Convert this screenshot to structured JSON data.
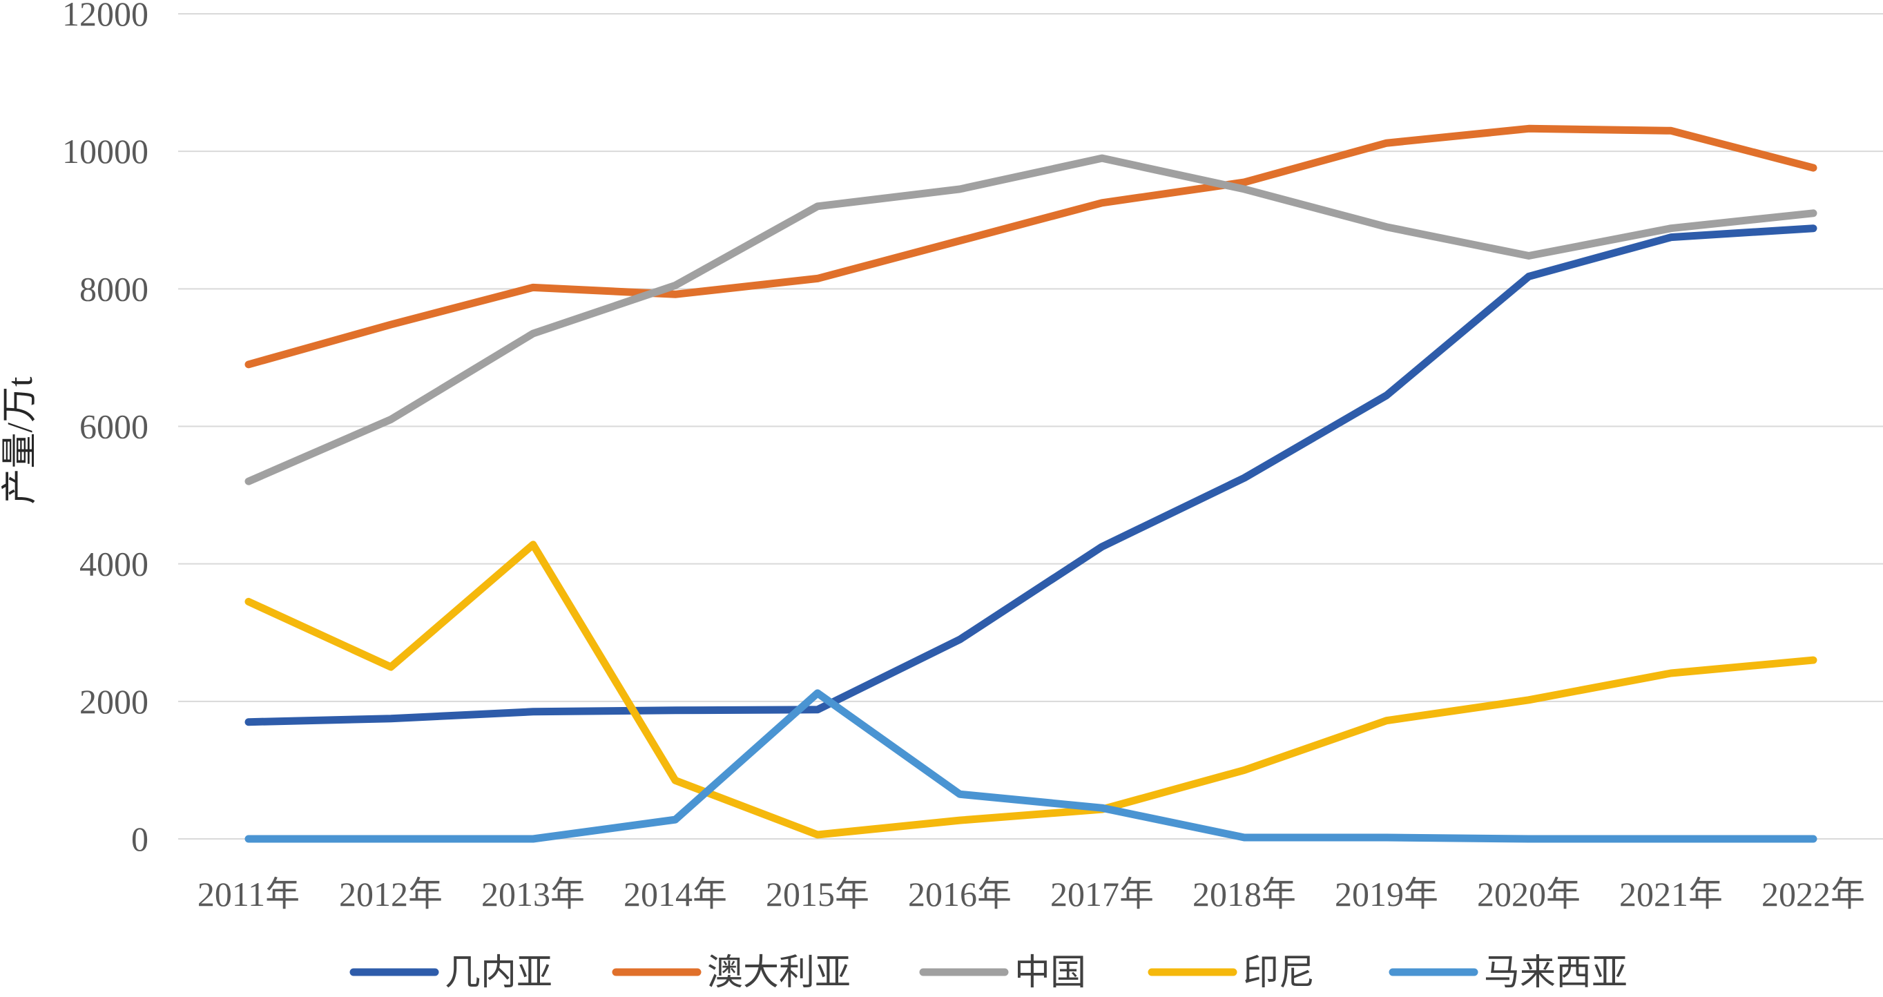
{
  "chart_data": {
    "type": "line",
    "ylabel": "产量/万t",
    "ylim": [
      0,
      12000
    ],
    "yticks": [
      0,
      2000,
      4000,
      6000,
      8000,
      10000,
      12000
    ],
    "categories": [
      "2011年",
      "2012年",
      "2013年",
      "2014年",
      "2015年",
      "2016年",
      "2017年",
      "2018年",
      "2019年",
      "2020年",
      "2021年",
      "2022年"
    ],
    "grid": true,
    "legend_position": "bottom",
    "series": [
      {
        "name": "几内亚",
        "color": "#2e5caa",
        "values": [
          1700,
          1750,
          1850,
          1870,
          1880,
          2900,
          4250,
          5250,
          6450,
          8180,
          8750,
          8880
        ]
      },
      {
        "name": "澳大利亚",
        "color": "#e0702b",
        "values": [
          6900,
          7480,
          8020,
          7920,
          8150,
          8700,
          9250,
          9550,
          10120,
          10330,
          10300,
          9760
        ]
      },
      {
        "name": "中国",
        "color": "#a0a0a0",
        "values": [
          5200,
          6100,
          7350,
          8050,
          9200,
          9450,
          9900,
          9450,
          8900,
          8480,
          8880,
          9100
        ]
      },
      {
        "name": "印尼",
        "color": "#f5b80c",
        "values": [
          3450,
          2500,
          4280,
          850,
          60,
          270,
          430,
          1000,
          1720,
          2020,
          2410,
          2600
        ]
      },
      {
        "name": "马来西亚",
        "color": "#4a94d2",
        "values": [
          0,
          0,
          0,
          280,
          2120,
          650,
          450,
          20,
          20,
          0,
          0,
          0
        ]
      }
    ]
  }
}
